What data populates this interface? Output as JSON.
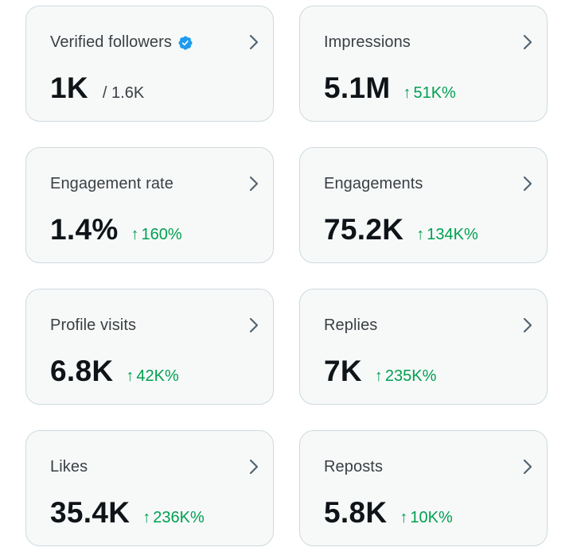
{
  "colors": {
    "card_background": "#f7f9f9",
    "card_border": "#cfd9de",
    "title_text": "#3a3f44",
    "value_text": "#0f1419",
    "positive_change": "#00a050",
    "verified_badge": "#1d9bf0",
    "chevron": "#536471"
  },
  "icons": {
    "verified": "verified-badge-icon",
    "open": "chevron-right-icon",
    "increase": "arrow-up-icon"
  },
  "metrics": {
    "verified_followers": {
      "title": "Verified followers",
      "value": "1K",
      "secondary": "/ 1.6K"
    },
    "impressions": {
      "title": "Impressions",
      "value": "5.1M",
      "change": "51K%"
    },
    "engagement_rate": {
      "title": "Engagement rate",
      "value": "1.4%",
      "change": "160%"
    },
    "engagements": {
      "title": "Engagements",
      "value": "75.2K",
      "change": "134K%"
    },
    "profile_visits": {
      "title": "Profile visits",
      "value": "6.8K",
      "change": "42K%"
    },
    "replies": {
      "title": "Replies",
      "value": "7K",
      "change": "235K%"
    },
    "likes": {
      "title": "Likes",
      "value": "35.4K",
      "change": "236K%"
    },
    "reposts": {
      "title": "Reposts",
      "value": "5.8K",
      "change": "10K%"
    }
  }
}
